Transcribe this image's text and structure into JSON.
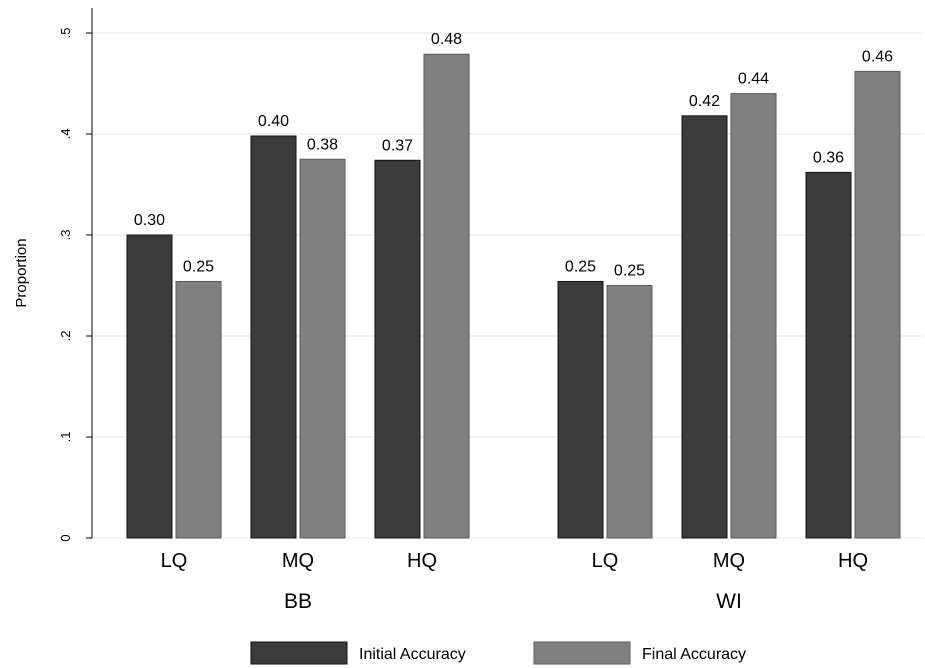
{
  "chart_data": {
    "type": "bar",
    "ylabel": "Proportion",
    "ylim": [
      0,
      0.5
    ],
    "yticks": [
      {
        "value": 0,
        "label": "0"
      },
      {
        "value": 0.1,
        "label": ".1"
      },
      {
        "value": 0.2,
        "label": ".2"
      },
      {
        "value": 0.3,
        "label": ".3"
      },
      {
        "value": 0.4,
        "label": ".4"
      },
      {
        "value": 0.5,
        "label": ".5"
      }
    ],
    "grid": true,
    "legend_position": "bottom",
    "groups": [
      {
        "name": "BB",
        "categories": [
          "LQ",
          "MQ",
          "HQ"
        ]
      },
      {
        "name": "WI",
        "categories": [
          "LQ",
          "MQ",
          "HQ"
        ]
      }
    ],
    "series": [
      {
        "name": "Initial Accuracy",
        "color": "#3b3b3b",
        "values": [
          0.3,
          0.398,
          0.374,
          0.254,
          0.418,
          0.362
        ],
        "labels": [
          "0.30",
          "0.40",
          "0.37",
          "0.25",
          "0.42",
          "0.36"
        ]
      },
      {
        "name": "Final Accuracy",
        "color": "#808080",
        "values": [
          0.254,
          0.375,
          0.479,
          0.25,
          0.44,
          0.462
        ],
        "labels": [
          "0.25",
          "0.38",
          "0.48",
          "0.25",
          "0.44",
          "0.46"
        ]
      }
    ]
  }
}
